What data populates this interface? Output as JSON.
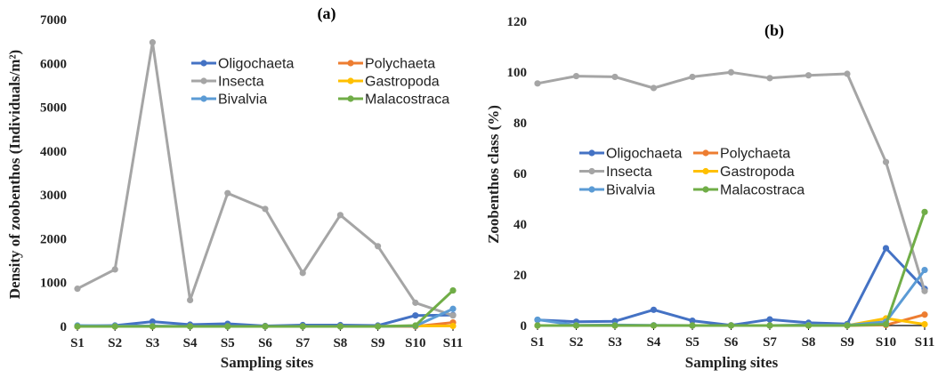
{
  "colors": {
    "Oligochaeta": "#4472C4",
    "Polychaeta": "#ED7D31",
    "Insecta": "#A5A5A5",
    "Gastropoda": "#FFC000",
    "Bivalvia": "#5B9BD5",
    "Malacostraca": "#70AD47"
  },
  "chart_data": [
    {
      "type": "line",
      "panel_label": "(a)",
      "xlabel": "Sampling sites",
      "ylabel": "Density of zoobenthos (Individuals/m²)",
      "categories": [
        "S1",
        "S2",
        "S3",
        "S4",
        "S5",
        "S6",
        "S7",
        "S8",
        "S9",
        "S10",
        "S11"
      ],
      "ylim": [
        0,
        7000
      ],
      "yticks": [
        0,
        1000,
        2000,
        3000,
        4000,
        5000,
        6000,
        7000
      ],
      "legend_position": "top-center",
      "grid": false,
      "series": [
        {
          "name": "Oligochaeta",
          "values": [
            10,
            20,
            110,
            40,
            60,
            10,
            30,
            30,
            20,
            250,
            260
          ]
        },
        {
          "name": "Polychaeta",
          "values": [
            0,
            0,
            0,
            0,
            0,
            0,
            0,
            0,
            0,
            0,
            90
          ]
        },
        {
          "name": "Insecta",
          "values": [
            860,
            1300,
            6480,
            600,
            3040,
            2680,
            1220,
            2540,
            1830,
            540,
            250
          ]
        },
        {
          "name": "Gastropoda",
          "values": [
            0,
            0,
            0,
            0,
            0,
            0,
            0,
            0,
            0,
            10,
            10
          ]
        },
        {
          "name": "Bivalvia",
          "values": [
            20,
            10,
            10,
            0,
            0,
            0,
            0,
            0,
            0,
            10,
            400
          ]
        },
        {
          "name": "Malacostraca",
          "values": [
            0,
            0,
            0,
            0,
            0,
            0,
            0,
            0,
            0,
            20,
            820
          ]
        }
      ]
    },
    {
      "type": "line",
      "panel_label": "(b)",
      "xlabel": "Sampling sites",
      "ylabel": "Zoobenthos class (%)",
      "categories": [
        "S1",
        "S2",
        "S3",
        "S4",
        "S5",
        "S6",
        "S7",
        "S8",
        "S9",
        "S10",
        "S11"
      ],
      "ylim": [
        0,
        120
      ],
      "yticks": [
        0,
        20,
        40,
        60,
        80,
        100,
        120
      ],
      "legend_position": "center-left",
      "grid": false,
      "series": [
        {
          "name": "Oligochaeta",
          "values": [
            2.2,
            1.5,
            1.7,
            6.2,
            1.9,
            0.1,
            2.4,
            1.1,
            0.6,
            30.5,
            14.5
          ]
        },
        {
          "name": "Polychaeta",
          "values": [
            0,
            0,
            0,
            0,
            0,
            0,
            0,
            0,
            0,
            0.2,
            4.3
          ]
        },
        {
          "name": "Insecta",
          "values": [
            95.5,
            98.4,
            98.1,
            93.7,
            98.1,
            99.9,
            97.6,
            98.7,
            99.3,
            64.5,
            13.6
          ]
        },
        {
          "name": "Gastropoda",
          "values": [
            0,
            0,
            0,
            0,
            0,
            0,
            0,
            0,
            0,
            2.8,
            0.5
          ]
        },
        {
          "name": "Bivalvia",
          "values": [
            2.3,
            0.1,
            0.2,
            0.1,
            0,
            0,
            0,
            0.2,
            0.1,
            1.5,
            21.9
          ]
        },
        {
          "name": "Malacostraca",
          "values": [
            0,
            0,
            0,
            0,
            0,
            0,
            0,
            0,
            0,
            0.5,
            44.8
          ]
        }
      ]
    }
  ]
}
